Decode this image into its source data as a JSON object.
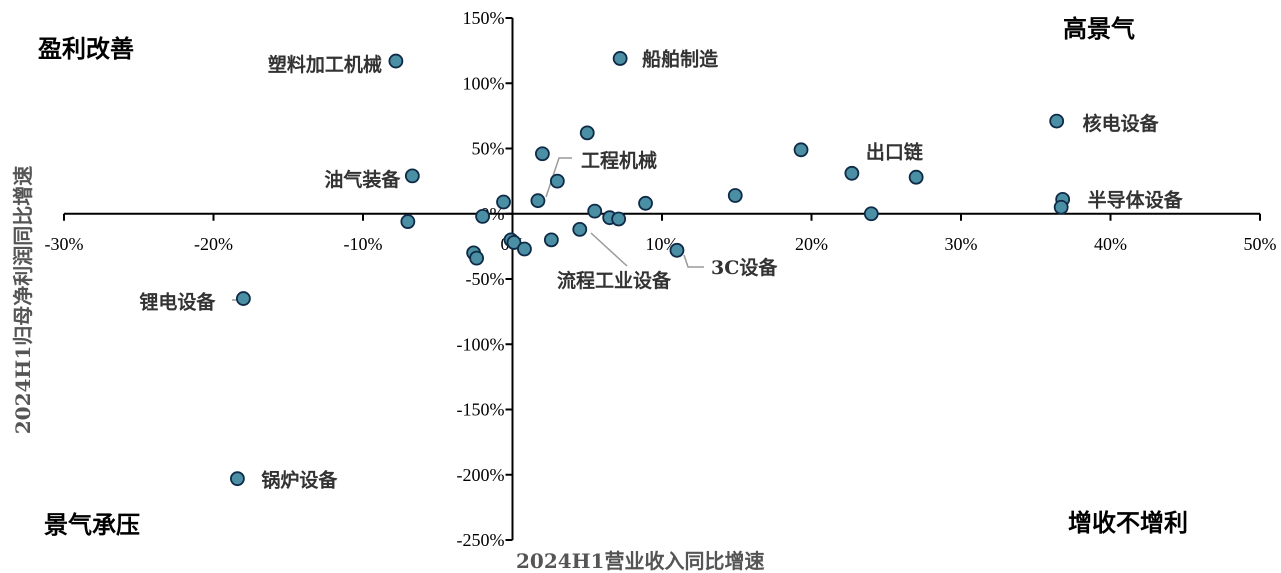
{
  "chart_data": {
    "type": "scatter",
    "xlabel": "2024H1营业收入同比增速",
    "ylabel": "2024H1归母净利润同比增速",
    "xlim": [
      -0.3,
      0.5
    ],
    "ylim": [
      -2.5,
      1.5
    ],
    "x_ticks": [
      "-30%",
      "-20%",
      "-10%",
      "0%",
      "10%",
      "20%",
      "30%",
      "40%",
      "50%"
    ],
    "y_ticks": [
      "150%",
      "100%",
      "50%",
      "0%",
      "-50%",
      "-100%",
      "-150%",
      "-200%",
      "-250%"
    ],
    "quadrants": {
      "top_left": "盈利改善",
      "top_right": "高景气",
      "bottom_left": "景气承压",
      "bottom_right": "增收不增利"
    },
    "grid": false,
    "legend": "none",
    "marker_fill": "#4A8FA3",
    "marker_edge": "#0E2A47",
    "points": [
      {
        "x": -0.078,
        "y": 1.17,
        "label": "塑料加工机械"
      },
      {
        "x": 0.072,
        "y": 1.19,
        "label": "船舶制造"
      },
      {
        "x": 0.05,
        "y": 0.62,
        "label": ""
      },
      {
        "x": 0.02,
        "y": 0.46,
        "label": ""
      },
      {
        "x": -0.067,
        "y": 0.29,
        "label": "油气装备"
      },
      {
        "x": 0.03,
        "y": 0.25,
        "label": ""
      },
      {
        "x": 0.017,
        "y": 0.1,
        "label": "工程机械"
      },
      {
        "x": -0.006,
        "y": 0.09,
        "label": ""
      },
      {
        "x": -0.02,
        "y": -0.02,
        "label": ""
      },
      {
        "x": -0.07,
        "y": -0.06,
        "label": ""
      },
      {
        "x": 0.055,
        "y": 0.02,
        "label": ""
      },
      {
        "x": 0.065,
        "y": -0.03,
        "label": ""
      },
      {
        "x": 0.071,
        "y": -0.04,
        "label": ""
      },
      {
        "x": 0.089,
        "y": 0.08,
        "label": ""
      },
      {
        "x": 0.149,
        "y": 0.14,
        "label": ""
      },
      {
        "x": 0.193,
        "y": 0.49,
        "label": ""
      },
      {
        "x": 0.227,
        "y": 0.31,
        "label": "出口链"
      },
      {
        "x": 0.27,
        "y": 0.28,
        "label": ""
      },
      {
        "x": 0.24,
        "y": 0.0,
        "label": ""
      },
      {
        "x": 0.364,
        "y": 0.71,
        "label": "核电设备"
      },
      {
        "x": 0.368,
        "y": 0.11,
        "label": "半导体设备"
      },
      {
        "x": 0.367,
        "y": 0.05,
        "label": ""
      },
      {
        "x": 0.045,
        "y": -0.12,
        "label": "流程工业设备"
      },
      {
        "x": 0.11,
        "y": -0.28,
        "label": "3C设备"
      },
      {
        "x": -0.001,
        "y": -0.2,
        "label": ""
      },
      {
        "x": 0.001,
        "y": -0.22,
        "label": ""
      },
      {
        "x": 0.008,
        "y": -0.27,
        "label": ""
      },
      {
        "x": 0.026,
        "y": -0.2,
        "label": ""
      },
      {
        "x": -0.026,
        "y": -0.3,
        "label": ""
      },
      {
        "x": -0.024,
        "y": -0.34,
        "label": ""
      },
      {
        "x": -0.18,
        "y": -0.65,
        "label": "锂电设备"
      },
      {
        "x": -0.184,
        "y": -2.03,
        "label": "锅炉设备"
      }
    ]
  }
}
